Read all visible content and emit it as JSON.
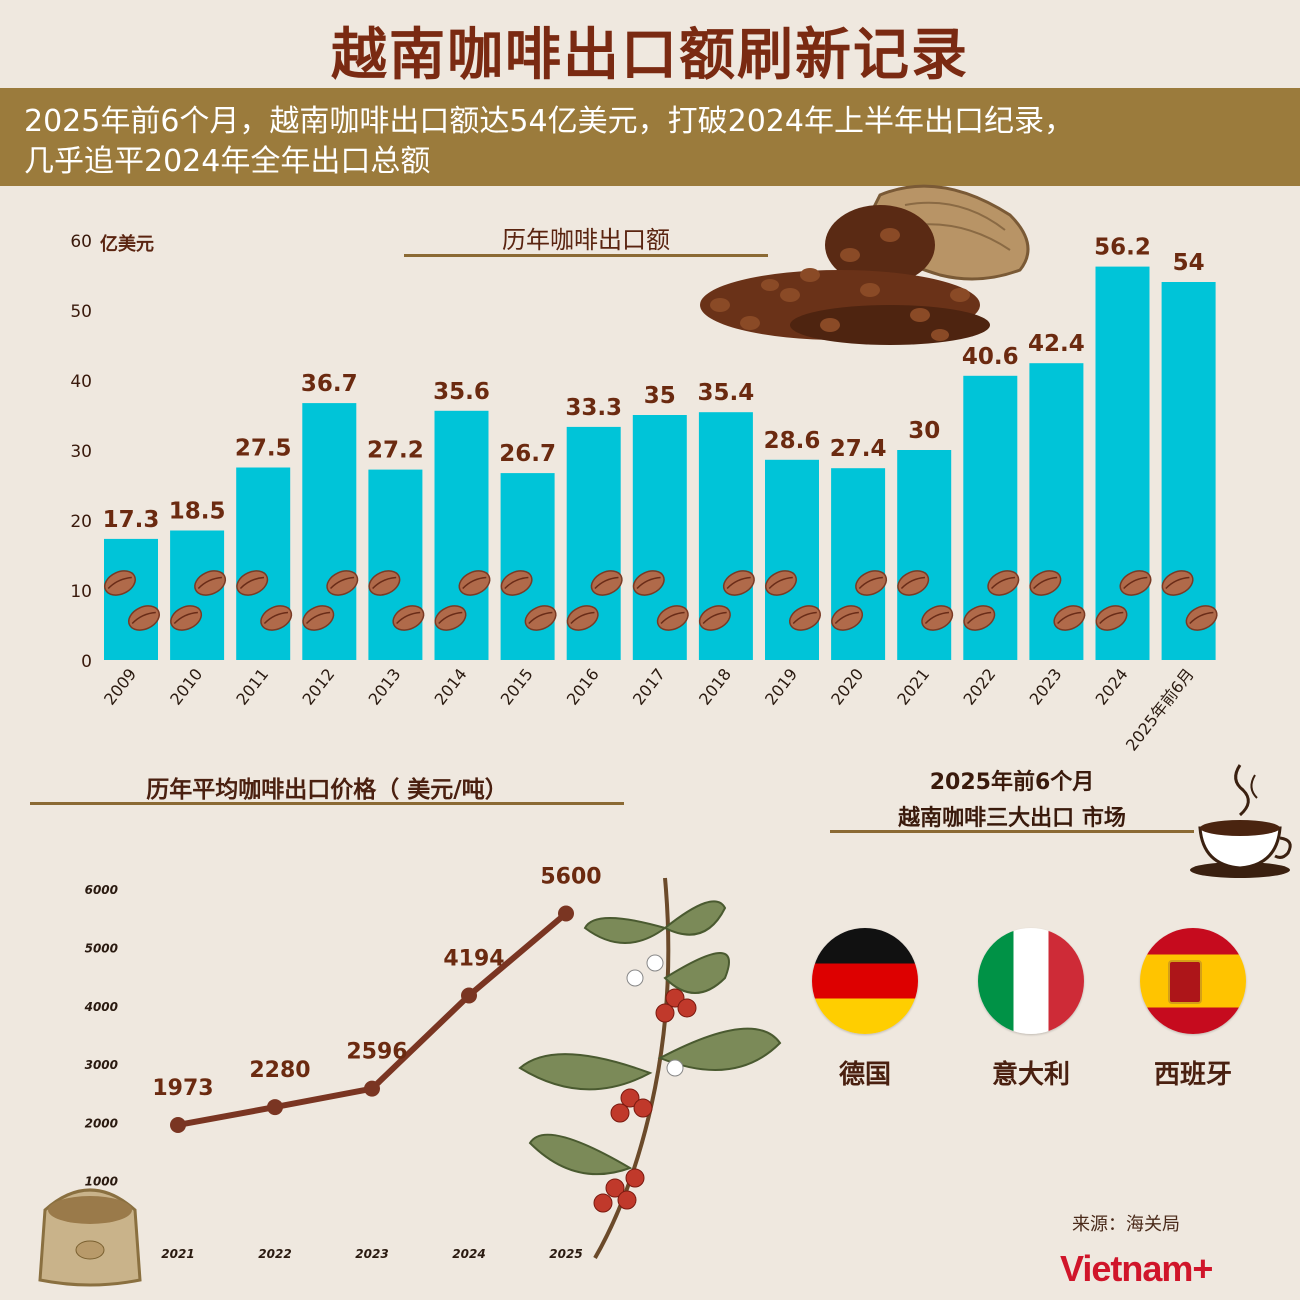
{
  "title": "越南咖啡出口额刷新记录",
  "subtitle": {
    "line1": "2025年前6个月，越南咖啡出口额达54亿美元，打破2024年上半年出口纪录，",
    "line2": "几乎追平2024年全年出口总额"
  },
  "chart_data": [
    {
      "type": "bar",
      "title": "历年咖啡出口额",
      "ylabel": "亿美元",
      "ylim": [
        0,
        60
      ],
      "yticks": [
        0,
        10,
        20,
        30,
        40,
        50,
        60
      ],
      "categories": [
        "2009",
        "2010",
        "2011",
        "2012",
        "2013",
        "2014",
        "2015",
        "2016",
        "2017",
        "2018",
        "2019",
        "2020",
        "2021",
        "2022",
        "2023",
        "2024",
        "2025年前6月"
      ],
      "values": [
        17.3,
        18.5,
        27.5,
        36.7,
        27.2,
        35.6,
        26.7,
        33.3,
        35,
        35.4,
        28.6,
        27.4,
        30,
        40.6,
        42.4,
        56.2,
        54
      ],
      "value_labels": [
        "17.3",
        "18.5",
        "27.5",
        "36.7",
        "27.2",
        "35.6",
        "26.7",
        "33.3",
        "35",
        "35.4",
        "28.6",
        "27.4",
        "30",
        "40.6",
        "42.4",
        "56.2",
        "54"
      ],
      "bar_color": "#00c4d8",
      "label_color": "#6b2a10"
    },
    {
      "type": "line",
      "title": "历年平均咖啡出口价格（ 美元/吨）",
      "x": [
        "2021",
        "2022",
        "2023",
        "2024",
        "2025"
      ],
      "values": [
        1973,
        2280,
        2596,
        4194,
        5600
      ],
      "value_labels": [
        "1973",
        "2280",
        "2596",
        "4194",
        "5600"
      ],
      "ylim": [
        0,
        6000
      ],
      "yticks": [
        1000,
        2000,
        3000,
        4000,
        5000,
        6000
      ],
      "line_color": "#7a3522"
    }
  ],
  "markets": {
    "title1": "2025年前6个月",
    "title2": "越南咖啡三大出口 市场",
    "countries": [
      {
        "name": "德国",
        "flag": "germany-flag"
      },
      {
        "name": "意大利",
        "flag": "italy-flag"
      },
      {
        "name": "西班牙",
        "flag": "spain-flag"
      }
    ]
  },
  "source": "来源：海关局",
  "brand": "Vietnam+",
  "colors": {
    "title": "#7a2a12",
    "banner": "#9b7b3c",
    "bar": "#00c4d8",
    "line": "#7a3522",
    "background": "#efe8df",
    "brand": "#d0152a"
  },
  "decorations": [
    "coffee-sack-icon",
    "coffee-bean-icon",
    "coffee-cup-icon",
    "coffee-branch-icon"
  ]
}
